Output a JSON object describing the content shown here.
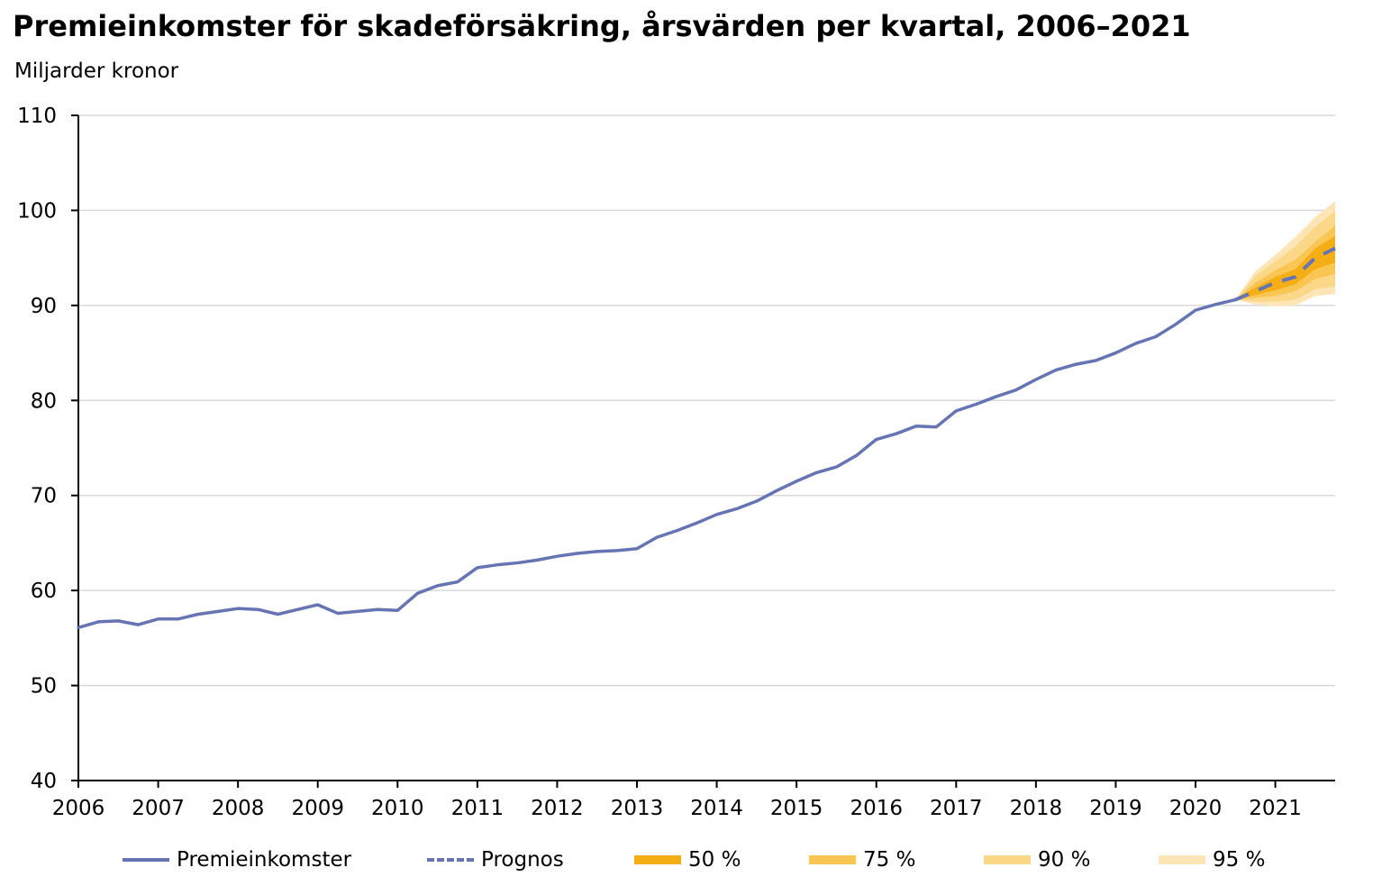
{
  "title": "Premieinkomster för skadeförsäkring, årsvärden per kvartal, 2006–2021",
  "subtitle": "Miljarder kronor",
  "colors": {
    "line": "#6674b4",
    "band50": "#f5ae13",
    "band75": "#f9c654",
    "band90": "#fbd788",
    "band95": "#fde5b6",
    "grid": "#d9d9d9"
  },
  "legend": {
    "premie": "Premieinkomster",
    "prognos": "Prognos",
    "b50": "50 %",
    "b75": "75 %",
    "b90": "90 %",
    "b95": "95 %"
  },
  "chart_data": {
    "type": "line",
    "title": "Premieinkomster för skadeförsäkring, årsvärden per kvartal, 2006–2021",
    "ylabel": "Miljarder kronor",
    "ylim": [
      40,
      110
    ],
    "yticks": [
      40,
      50,
      60,
      70,
      80,
      90,
      100,
      110
    ],
    "xlim": [
      2006,
      2021.75
    ],
    "xticks": [
      "2006",
      "2007",
      "2008",
      "2009",
      "2010",
      "2011",
      "2012",
      "2013",
      "2014",
      "2015",
      "2016",
      "2017",
      "2018",
      "2019",
      "2020",
      "2021"
    ],
    "grid": true,
    "legend_position": "bottom",
    "series": [
      {
        "name": "Premieinkomster",
        "style": "solid",
        "x": [
          2006.0,
          2006.25,
          2006.5,
          2006.75,
          2007.0,
          2007.25,
          2007.5,
          2007.75,
          2008.0,
          2008.25,
          2008.5,
          2008.75,
          2009.0,
          2009.25,
          2009.5,
          2009.75,
          2010.0,
          2010.25,
          2010.5,
          2010.75,
          2011.0,
          2011.25,
          2011.5,
          2011.75,
          2012.0,
          2012.25,
          2012.5,
          2012.75,
          2013.0,
          2013.25,
          2013.5,
          2013.75,
          2014.0,
          2014.25,
          2014.5,
          2014.75,
          2015.0,
          2015.25,
          2015.5,
          2015.75,
          2016.0,
          2016.25,
          2016.5,
          2016.75,
          2017.0,
          2017.25,
          2017.5,
          2017.75,
          2018.0,
          2018.25,
          2018.5,
          2018.75,
          2019.0,
          2019.25,
          2019.5,
          2019.75,
          2020.0,
          2020.25,
          2020.5
        ],
        "values": [
          56.1,
          56.7,
          56.8,
          56.4,
          57.0,
          57.0,
          57.5,
          57.8,
          58.1,
          58.0,
          57.5,
          58.0,
          58.5,
          57.6,
          57.8,
          58.0,
          57.9,
          59.7,
          60.5,
          60.9,
          62.4,
          62.7,
          62.9,
          63.2,
          63.6,
          63.9,
          64.1,
          64.2,
          64.4,
          65.6,
          66.3,
          67.1,
          68.0,
          68.6,
          69.4,
          70.5,
          71.5,
          72.4,
          73.0,
          74.2,
          75.9,
          76.5,
          77.3,
          77.2,
          78.9,
          79.6,
          80.4,
          81.1,
          82.2,
          83.2,
          83.8,
          84.2,
          85.0,
          86.0,
          86.7,
          88.0,
          89.5,
          90.1,
          90.6
        ]
      },
      {
        "name": "Prognos",
        "style": "dashed",
        "x": [
          2020.5,
          2020.75,
          2021.0,
          2021.25,
          2021.5,
          2021.75
        ],
        "values": [
          90.6,
          91.5,
          92.4,
          93.0,
          95.0,
          96.0
        ]
      }
    ],
    "bands": [
      {
        "name": "95 %",
        "x": [
          2020.5,
          2020.75,
          2021.0,
          2021.25,
          2021.5,
          2021.75
        ],
        "lower": [
          90.6,
          90.1,
          89.9,
          90.0,
          91.0,
          91.2
        ],
        "upper": [
          90.6,
          93.6,
          95.3,
          97.2,
          99.3,
          101.0
        ]
      },
      {
        "name": "90 %",
        "x": [
          2020.5,
          2020.75,
          2021.0,
          2021.25,
          2021.5,
          2021.75
        ],
        "lower": [
          90.6,
          90.4,
          90.4,
          90.6,
          91.7,
          92.0
        ],
        "upper": [
          90.6,
          93.1,
          94.6,
          96.2,
          98.3,
          99.9
        ]
      },
      {
        "name": "75 %",
        "x": [
          2020.5,
          2020.75,
          2021.0,
          2021.25,
          2021.5,
          2021.75
        ],
        "lower": [
          90.6,
          90.8,
          91.0,
          91.5,
          92.8,
          93.3
        ],
        "upper": [
          90.6,
          92.4,
          93.7,
          94.8,
          96.7,
          98.4
        ]
      },
      {
        "name": "50 %",
        "x": [
          2020.5,
          2020.75,
          2021.0,
          2021.25,
          2021.5,
          2021.75
        ],
        "lower": [
          90.6,
          91.1,
          91.6,
          92.2,
          93.8,
          94.5
        ],
        "upper": [
          90.6,
          91.9,
          93.0,
          93.8,
          96.0,
          97.3
        ]
      }
    ]
  }
}
